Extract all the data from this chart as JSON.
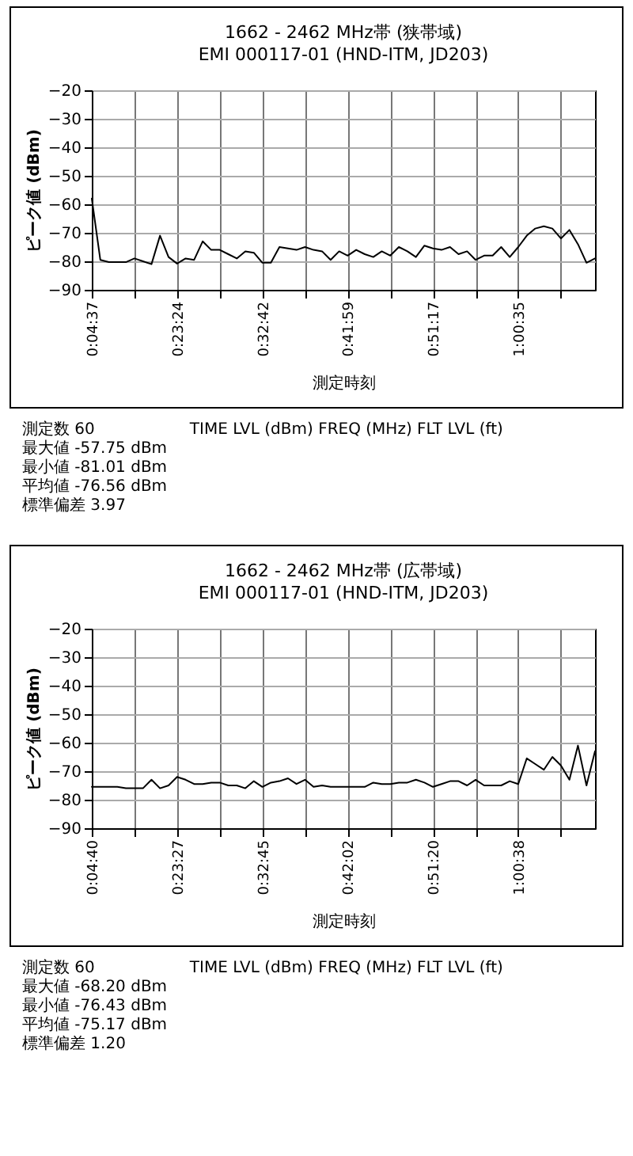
{
  "chart_data": [
    {
      "type": "line",
      "title": "1662 - 2462 MHz帯 (狭帯域)",
      "subtitle": "EMI 000117-01 (HND-ITM, JD203)",
      "xlabel": "測定時刻",
      "ylabel": "ピーク値 (dBm)",
      "categories": [
        "0:04:37",
        null,
        null,
        null,
        null,
        null,
        null,
        null,
        null,
        null,
        "0:23:24",
        null,
        null,
        null,
        null,
        null,
        null,
        null,
        null,
        null,
        "0:32:42",
        null,
        null,
        null,
        null,
        null,
        null,
        null,
        null,
        null,
        "0:41:59",
        null,
        null,
        null,
        null,
        null,
        null,
        null,
        null,
        null,
        "0:51:17",
        null,
        null,
        null,
        null,
        null,
        null,
        null,
        null,
        null,
        "1:00:35",
        null,
        null,
        null,
        null,
        null,
        null,
        null,
        null,
        null
      ],
      "series": [
        {
          "color": "#000000",
          "values": [
            -58,
            -79.5,
            -80.3,
            -80.3,
            -80.3,
            -79,
            -80,
            -81,
            -71,
            -78.5,
            -80.8,
            -79,
            -79.5,
            -73,
            -76,
            -76,
            -77.5,
            -79,
            -76.5,
            -77,
            -80.5,
            -80.5,
            -75,
            -75.5,
            -76,
            -75,
            -76,
            -76.5,
            -79.5,
            -76.5,
            -78,
            -76,
            -77.5,
            -78.5,
            -76.5,
            -78,
            -75,
            -76.5,
            -78.5,
            -74.5,
            -75.5,
            -76,
            -75,
            -77.5,
            -76.5,
            -79.5,
            -78,
            -78,
            -75,
            -78.5,
            -75,
            -71,
            -68.5,
            -67.7,
            -68.5,
            -72,
            -69,
            -74,
            -80.5,
            -79
          ]
        }
      ],
      "ylim": [
        -90,
        -20
      ],
      "yticks": [
        -20,
        -30,
        -40,
        -50,
        -60,
        -70,
        -80,
        -90
      ],
      "grid": true,
      "annotations": [
        "測定数 60",
        "TIME LVL (dBm) FREQ (MHz) FLT LVL (ft)",
        "最大値 -57.75 dBm",
        "最小値 -81.01 dBm",
        "平均値 -76.56 dBm",
        "標準偏差 3.97"
      ]
    },
    {
      "type": "line",
      "title": "1662 - 2462 MHz帯 (広帯域)",
      "subtitle": "EMI 000117-01 (HND-ITM, JD203)",
      "xlabel": "測定時刻",
      "ylabel": "ピーク値 (dBm)",
      "categories": [
        "0:04:40",
        null,
        null,
        null,
        null,
        null,
        null,
        null,
        null,
        null,
        "0:23:27",
        null,
        null,
        null,
        null,
        null,
        null,
        null,
        null,
        null,
        "0:32:45",
        null,
        null,
        null,
        null,
        null,
        null,
        null,
        null,
        null,
        "0:42:02",
        null,
        null,
        null,
        null,
        null,
        null,
        null,
        null,
        null,
        "0:51:20",
        null,
        null,
        null,
        null,
        null,
        null,
        null,
        null,
        null,
        "1:00:38",
        null,
        null,
        null,
        null,
        null,
        null,
        null,
        null,
        null
      ],
      "series": [
        {
          "color": "#000000",
          "values": [
            -75.5,
            -75.5,
            -75.5,
            -75.5,
            -76,
            -76,
            -76,
            -73,
            -76,
            -75,
            -72,
            -73,
            -74.5,
            -74.5,
            -74,
            -74,
            -75,
            -75,
            -76,
            -73.5,
            -75.5,
            -74,
            -73.5,
            -72.5,
            -74.5,
            -73,
            -75.5,
            -75,
            -75.5,
            -75.5,
            -75.5,
            -75.5,
            -75.5,
            -74,
            -74.5,
            -74.5,
            -74,
            -74,
            -73,
            -74,
            -75.5,
            -74.5,
            -73.5,
            -73.5,
            -75,
            -73,
            -75,
            -75,
            -75,
            -73.5,
            -74.5,
            -65.5,
            -67.5,
            -69.5,
            -65,
            -68,
            -73,
            -61,
            -75,
            -63
          ]
        }
      ],
      "ylim": [
        -90,
        -20
      ],
      "yticks": [
        -20,
        -30,
        -40,
        -50,
        -60,
        -70,
        -80,
        -90
      ],
      "grid": true,
      "annotations": [
        "測定数 60",
        "TIME LVL (dBm) FREQ (MHz) FLT LVL (ft)",
        "最大値 -68.20 dBm",
        "最小値 -76.43 dBm",
        "平均値 -75.17 dBm",
        "標準偏差 1.20"
      ]
    }
  ]
}
